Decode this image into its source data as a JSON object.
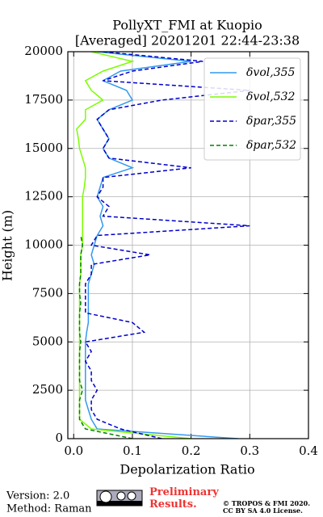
{
  "chart_data": {
    "type": "profile",
    "title": "PollyXT_FMI at Kuopio",
    "subtitle": "[Averaged] 20201201 22:44-23:38",
    "x_label": "Depolarization Ratio",
    "y_label": "Height (m)",
    "xlim": [
      -0.01,
      0.4
    ],
    "xticks": [
      {
        "value": 0,
        "label": "0.0"
      },
      0.1,
      0.2,
      0.3,
      0.4
    ],
    "ylim": [
      0,
      20000
    ],
    "yticks": [
      0,
      2500,
      5000,
      7500,
      10000,
      12500,
      15000,
      17500,
      20000
    ],
    "grid": true,
    "legend": "upper right",
    "y": [
      0,
      500,
      1000,
      1500,
      2000,
      2500,
      3000,
      3500,
      4000,
      4500,
      5000,
      5500,
      6000,
      6500,
      7000,
      7500,
      8000,
      8500,
      9000,
      9500,
      10000,
      10500,
      11000,
      11500,
      12000,
      12500,
      13000,
      13500,
      14000,
      14500,
      15000,
      15500,
      16000,
      16500,
      17000,
      17500,
      18000,
      18500,
      19000,
      19500,
      20000
    ],
    "series": [
      {
        "name": "δvol,355",
        "color": "#3399ee",
        "dash": false,
        "values": [
          0.28,
          0.04,
          0.03,
          0.025,
          0.02,
          0.02,
          0.02,
          0.02,
          0.02,
          0.02,
          0.02,
          0.022,
          0.025,
          0.025,
          0.025,
          0.025,
          0.025,
          0.03,
          0.035,
          0.03,
          0.035,
          0.04,
          0.05,
          0.045,
          0.05,
          0.04,
          0.045,
          0.05,
          0.1,
          0.06,
          0.05,
          0.06,
          0.05,
          0.04,
          0.06,
          0.1,
          0.09,
          0.05,
          0.08,
          0.2,
          0.04
        ]
      },
      {
        "name": "δvol,532",
        "color": "#7cfc00",
        "dash": false,
        "values": [
          0.2,
          0.03,
          0.01,
          0.01,
          0.01,
          0.01,
          0.01,
          0.01,
          0.01,
          0.01,
          0.01,
          0.01,
          0.01,
          0.01,
          0.01,
          0.01,
          0.01,
          0.012,
          0.012,
          0.012,
          0.015,
          0.015,
          0.015,
          0.015,
          0.015,
          0.015,
          0.018,
          0.02,
          0.02,
          0.015,
          0.01,
          0.008,
          0.005,
          0.02,
          0.02,
          0.05,
          0.03,
          0.02,
          0.05,
          0.1,
          0.03
        ]
      },
      {
        "name": "δpar,355",
        "color": "#0000cc",
        "dash": true,
        "values": [
          0.15,
          0.08,
          0.04,
          0.03,
          0.03,
          0.04,
          0.03,
          0.03,
          0.02,
          0.03,
          0.02,
          0.12,
          0.1,
          0.02,
          0.02,
          0.02,
          0.02,
          0.03,
          0.03,
          0.13,
          0.03,
          0.04,
          0.3,
          0.05,
          0.06,
          0.04,
          0.05,
          0.05,
          0.2,
          0.06,
          0.05,
          0.06,
          0.05,
          0.04,
          0.06,
          0.15,
          0.3,
          0.05,
          0.1,
          0.22,
          0.05
        ]
      },
      {
        "name": "δpar,532",
        "color": "#008000",
        "dash": true,
        "values": [
          0.1,
          0.02,
          0.01,
          0.01,
          0.01,
          0.015,
          0.01,
          0.01,
          0.01,
          0.01,
          0.012,
          0.01,
          0.01,
          0.01,
          0.012,
          0.01,
          0.01,
          0.012,
          0.012,
          0.012,
          0.015,
          0.012,
          null,
          null,
          null,
          null,
          null,
          null,
          null,
          null,
          null,
          null,
          null,
          null,
          null,
          null,
          null,
          null,
          null,
          null,
          null
        ]
      }
    ]
  },
  "footer": {
    "version": "Version: 2.0",
    "method": "Method: Raman",
    "preliminary": "Preliminary Results.",
    "copyright": "© TROPOS & FMI 2020.",
    "license": "CC BY SA 4.0 License."
  }
}
